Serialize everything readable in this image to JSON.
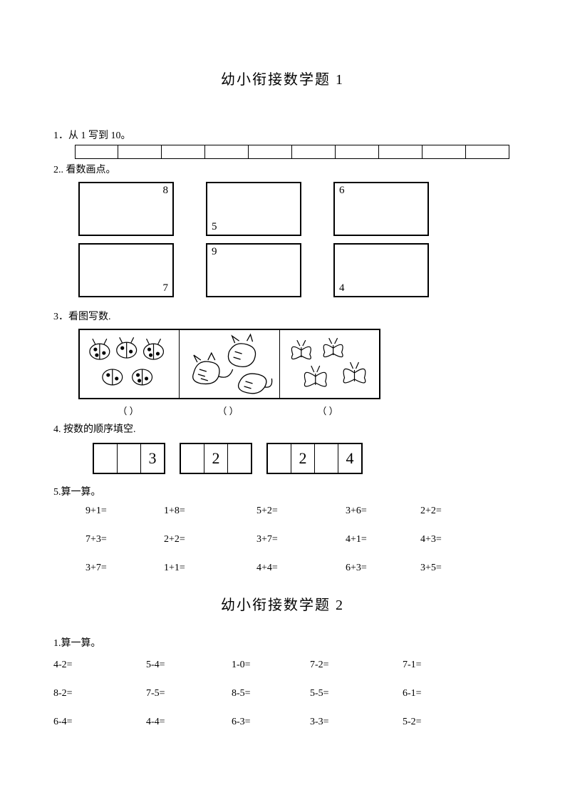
{
  "title1": "幼小衔接数学题 1",
  "title2": "幼小衔接数学题 2",
  "q1": {
    "label": "1．从 1 写到 10。",
    "cells": 10
  },
  "q2": {
    "label": "2.. 看数画点。",
    "boxes": [
      {
        "num": "8",
        "pos": "tr"
      },
      {
        "num": "5",
        "pos": "bl"
      },
      {
        "num": "6",
        "pos": "tl"
      },
      {
        "num": "7",
        "pos": "br"
      },
      {
        "num": "9",
        "pos": "tl"
      },
      {
        "num": "4",
        "pos": "bl"
      }
    ]
  },
  "q3": {
    "label": "3．看图写数.",
    "answers": [
      "（     ）",
      "（     ）",
      "（     ）"
    ]
  },
  "q4": {
    "label": "4. 按数的顺序填空.",
    "groups": [
      [
        "",
        "",
        "3"
      ],
      [
        "",
        "2",
        ""
      ],
      [
        "",
        "2",
        "",
        "4"
      ]
    ]
  },
  "q5": {
    "label": "5.算一算。",
    "rows": [
      [
        "9+1=",
        "1+8=",
        "5+2=",
        "3+6=",
        "2+2="
      ],
      [
        "7+3=",
        "2+2=",
        "3+7=",
        "4+1=",
        "4+3="
      ],
      [
        "3+7=",
        "1+1=",
        "4+4=",
        "6+3=",
        "3+5="
      ]
    ],
    "col_offsets": [
      45,
      155,
      285,
      410,
      515
    ]
  },
  "q6": {
    "label": "1.算一算。",
    "rows": [
      [
        "4-2=",
        "5-4=",
        "1-0=",
        "7-2=",
        "7-1="
      ],
      [
        "8-2=",
        "7-5=",
        "8-5=",
        "5-5=",
        "6-1="
      ],
      [
        "6-4=",
        "4-4=",
        "6-3=",
        "3-3=",
        "5-2="
      ]
    ],
    "col_offsets": [
      0,
      130,
      250,
      360,
      490
    ]
  },
  "colors": {
    "text": "#000000",
    "background": "#ffffff",
    "border": "#000000"
  }
}
